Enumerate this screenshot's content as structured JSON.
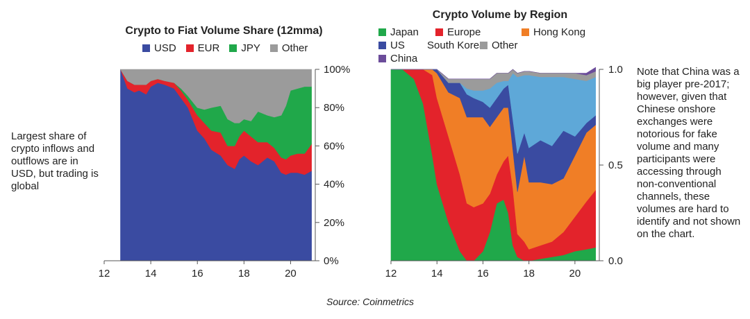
{
  "left_annotation": "Largest share of crypto inflows and outflows are in USD, but trading is global",
  "right_annotation": "Note that China was a big player pre-2017; however, given that Chinese onshore exchanges were notorious for fake volume and many participants were accessing through non-conventional channels, these volumes are hard to identify and not shown on the chart.",
  "source": "Source: Coinmetrics",
  "chart_data": [
    {
      "type": "area",
      "stacked": true,
      "title": "Crypto to Fiat Volume Share (12mma)",
      "x": [
        12.7,
        13.0,
        13.3,
        13.5,
        13.8,
        14.0,
        14.3,
        14.6,
        15.0,
        15.3,
        15.6,
        16.0,
        16.3,
        16.6,
        17.0,
        17.3,
        17.6,
        17.8,
        18.0,
        18.3,
        18.6,
        19.0,
        19.3,
        19.6,
        19.8,
        20.0,
        20.3,
        20.6,
        20.9
      ],
      "series": [
        {
          "name": "USD",
          "color": "#3a4ba1",
          "values": [
            100,
            90,
            88,
            89,
            87,
            91,
            93,
            92,
            90,
            85,
            80,
            68,
            64,
            58,
            55,
            50,
            48,
            53,
            55,
            52,
            50,
            54,
            52,
            46,
            45,
            46,
            46,
            45,
            47
          ]
        },
        {
          "name": "EUR",
          "color": "#e3232b",
          "values": [
            0,
            4,
            4,
            3,
            5,
            3,
            2,
            2,
            3,
            4,
            4,
            8,
            8,
            10,
            12,
            10,
            12,
            12,
            13,
            13,
            12,
            8,
            7,
            8,
            8,
            9,
            10,
            11,
            14
          ]
        },
        {
          "name": "JPY",
          "color": "#20a84a",
          "values": [
            0,
            0,
            0,
            0,
            0,
            0,
            0,
            0,
            0,
            1,
            2,
            4,
            7,
            12,
            14,
            14,
            12,
            7,
            6,
            8,
            16,
            14,
            16,
            22,
            28,
            34,
            34,
            35,
            30
          ]
        },
        {
          "name": "Other",
          "color": "#9b9b9b",
          "values": [
            0,
            6,
            8,
            8,
            8,
            6,
            5,
            6,
            7,
            10,
            14,
            20,
            21,
            20,
            19,
            26,
            28,
            28,
            26,
            27,
            22,
            24,
            25,
            24,
            19,
            11,
            10,
            9,
            9
          ]
        }
      ],
      "xlim": [
        12,
        21
      ],
      "xticks": [
        "12",
        "14",
        "16",
        "18",
        "20"
      ],
      "ylim": [
        0,
        100
      ],
      "yticks": [
        "0%",
        "20%",
        "40%",
        "60%",
        "80%",
        "100%"
      ],
      "legend": "top"
    },
    {
      "type": "area",
      "stacked": true,
      "title": "Crypto Volume by Region",
      "x": [
        12.0,
        12.5,
        13.0,
        13.4,
        13.8,
        14.0,
        14.5,
        15.0,
        15.3,
        15.6,
        16.0,
        16.3,
        16.6,
        16.9,
        17.1,
        17.3,
        17.5,
        17.8,
        18.0,
        18.5,
        19.0,
        19.5,
        20.0,
        20.5,
        20.9
      ],
      "series": [
        {
          "name": "Japan",
          "color": "#20a84a",
          "values": [
            1.0,
            1.0,
            0.95,
            0.82,
            0.55,
            0.4,
            0.2,
            0.05,
            0.0,
            0.0,
            0.05,
            0.15,
            0.3,
            0.32,
            0.25,
            0.08,
            0.02,
            0.0,
            0.0,
            0.01,
            0.02,
            0.03,
            0.05,
            0.06,
            0.07
          ]
        },
        {
          "name": "Europe",
          "color": "#e3232b",
          "values": [
            0.0,
            0.0,
            0.05,
            0.18,
            0.42,
            0.45,
            0.45,
            0.4,
            0.3,
            0.28,
            0.25,
            0.2,
            0.15,
            0.2,
            0.3,
            0.3,
            0.12,
            0.1,
            0.06,
            0.07,
            0.08,
            0.12,
            0.18,
            0.25,
            0.3
          ]
        },
        {
          "name": "Hong Kong",
          "color": "#f07e26",
          "values": [
            0.0,
            0.0,
            0.0,
            0.0,
            0.03,
            0.13,
            0.23,
            0.4,
            0.45,
            0.47,
            0.45,
            0.35,
            0.3,
            0.28,
            0.25,
            0.2,
            0.22,
            0.45,
            0.35,
            0.33,
            0.3,
            0.28,
            0.32,
            0.36,
            0.34
          ]
        },
        {
          "name": "US",
          "color": "#3a4ba1",
          "values": [
            0.0,
            0.0,
            0.0,
            0.0,
            0.0,
            0.02,
            0.05,
            0.08,
            0.12,
            0.1,
            0.08,
            0.1,
            0.1,
            0.1,
            0.12,
            0.16,
            0.2,
            0.12,
            0.18,
            0.22,
            0.2,
            0.25,
            0.1,
            0.05,
            0.05
          ]
        },
        {
          "name": "South Korea",
          "color": "#5ea8d8",
          "values": [
            0.0,
            0.0,
            0.0,
            0.0,
            0.0,
            0.0,
            0.0,
            0.0,
            0.03,
            0.04,
            0.06,
            0.1,
            0.08,
            0.04,
            0.02,
            0.24,
            0.4,
            0.3,
            0.38,
            0.33,
            0.36,
            0.28,
            0.3,
            0.22,
            0.2
          ]
        },
        {
          "name": "Other",
          "color": "#9b9b9b",
          "values": [
            0.0,
            0.0,
            0.0,
            0.0,
            0.0,
            0.0,
            0.02,
            0.02,
            0.05,
            0.06,
            0.06,
            0.05,
            0.05,
            0.04,
            0.04,
            0.02,
            0.02,
            0.02,
            0.02,
            0.02,
            0.02,
            0.02,
            0.03,
            0.03,
            0.03
          ]
        },
        {
          "name": "China",
          "color": "#6b4c9a",
          "values": [
            0.0,
            0.0,
            0.0,
            0.0,
            0.0,
            0.0,
            0.0,
            0.0,
            0.0,
            0.0,
            0.0,
            0.0,
            0.0,
            0.0,
            0.0,
            0.0,
            0.0,
            0.0,
            0.0,
            0.0,
            0.0,
            0.0,
            0.0,
            0.01,
            0.02
          ]
        }
      ],
      "xlim": [
        12,
        21
      ],
      "xticks": [
        "12",
        "14",
        "16",
        "18",
        "20"
      ],
      "ylim": [
        0,
        1
      ],
      "yticks": [
        "0.0",
        "0.5",
        "1.0"
      ],
      "legend": "top"
    }
  ]
}
